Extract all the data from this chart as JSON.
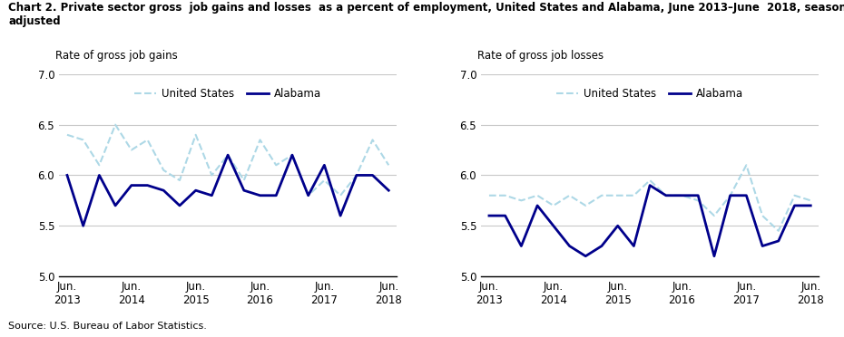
{
  "title_line1": "Chart 2. Private sector gross  job gains and losses  as a percent of employment, United States and Alabama, June 2013–June  2018, seasonally",
  "title_line2": "adjusted",
  "left_ylabel": "Rate of gross job gains",
  "right_ylabel": "Rate of gross job losses",
  "source": "Source: U.S. Bureau of Labor Statistics.",
  "x_labels": [
    "Jun.\n2013",
    "Jun.\n2014",
    "Jun.\n2015",
    "Jun.\n2016",
    "Jun.\n2017",
    "Jun.\n2018"
  ],
  "xtick_positions": [
    0,
    4,
    8,
    12,
    16,
    20
  ],
  "ylim": [
    5.0,
    7.0
  ],
  "yticks": [
    5.0,
    5.5,
    6.0,
    6.5,
    7.0
  ],
  "gains_us": [
    6.4,
    6.35,
    6.1,
    6.5,
    6.25,
    6.35,
    6.05,
    5.95,
    6.4,
    6.0,
    6.2,
    5.95,
    6.35,
    6.1,
    6.2,
    5.8,
    5.95,
    5.8,
    6.0,
    6.35,
    6.1
  ],
  "gains_al": [
    6.0,
    5.5,
    6.0,
    5.7,
    5.9,
    5.9,
    5.85,
    5.7,
    5.85,
    5.8,
    6.2,
    5.85,
    5.8,
    5.8,
    6.2,
    5.8,
    6.1,
    5.6,
    6.0,
    6.0,
    5.85
  ],
  "losses_us": [
    5.8,
    5.8,
    5.75,
    5.8,
    5.7,
    5.8,
    5.7,
    5.8,
    5.8,
    5.8,
    5.95,
    5.8,
    5.8,
    5.75,
    5.6,
    5.8,
    6.1,
    5.6,
    5.45,
    5.8,
    5.75
  ],
  "losses_al": [
    5.6,
    5.6,
    5.3,
    5.7,
    5.5,
    5.3,
    5.2,
    5.3,
    5.5,
    5.3,
    5.9,
    5.8,
    5.8,
    5.8,
    5.2,
    5.8,
    5.8,
    5.3,
    5.35,
    5.7,
    5.7
  ],
  "us_color": "#ADD8E6",
  "al_color": "#00008B",
  "us_linewidth": 1.5,
  "al_linewidth": 2.0,
  "legend_us": "United States",
  "legend_al": "Alabama",
  "title_fontsize": 8.5,
  "label_fontsize": 8.5,
  "tick_fontsize": 8.5,
  "legend_fontsize": 8.5,
  "source_fontsize": 8.0
}
